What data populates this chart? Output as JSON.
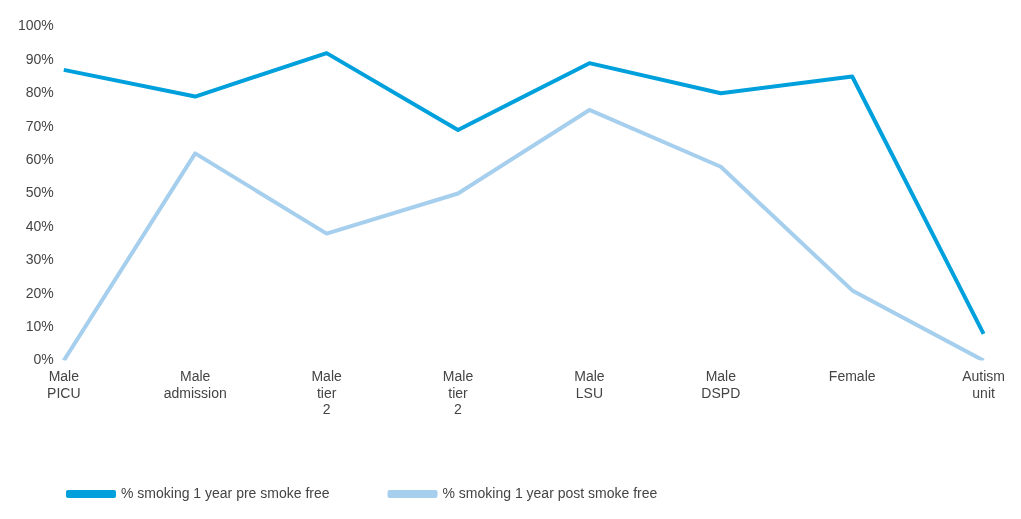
{
  "chart_data": {
    "type": "line",
    "categories": [
      "Male PICU",
      "Male admission",
      "Male tier 2",
      "Male tier 2",
      "Male LSU",
      "Male DSPD",
      "Female",
      "Autism unit"
    ],
    "series": [
      {
        "name": "% smoking 1 year pre smoke free",
        "color": "#00a0dc",
        "values": [
          87,
          79,
          92,
          69,
          89,
          80,
          85,
          8
        ]
      },
      {
        "name": "% smoking 1 year post smoke free",
        "color": "#a6cfee",
        "values": [
          0,
          62,
          38,
          50,
          75,
          58,
          21,
          0
        ]
      }
    ],
    "ylim": [
      0,
      100
    ],
    "yticks": [
      {
        "value": 0,
        "label": "0%"
      },
      {
        "value": 10,
        "label": "10%"
      },
      {
        "value": 20,
        "label": "20%"
      },
      {
        "value": 30,
        "label": "30%"
      },
      {
        "value": 40,
        "label": "40%"
      },
      {
        "value": 50,
        "label": "50%"
      },
      {
        "value": 60,
        "label": "60%"
      },
      {
        "value": 70,
        "label": "70%"
      },
      {
        "value": 80,
        "label": "80%"
      },
      {
        "value": 90,
        "label": "90%"
      },
      {
        "value": 100,
        "label": "100%"
      }
    ],
    "grid": false,
    "legend": "bottom",
    "marker": "none",
    "line_style": "solid"
  }
}
